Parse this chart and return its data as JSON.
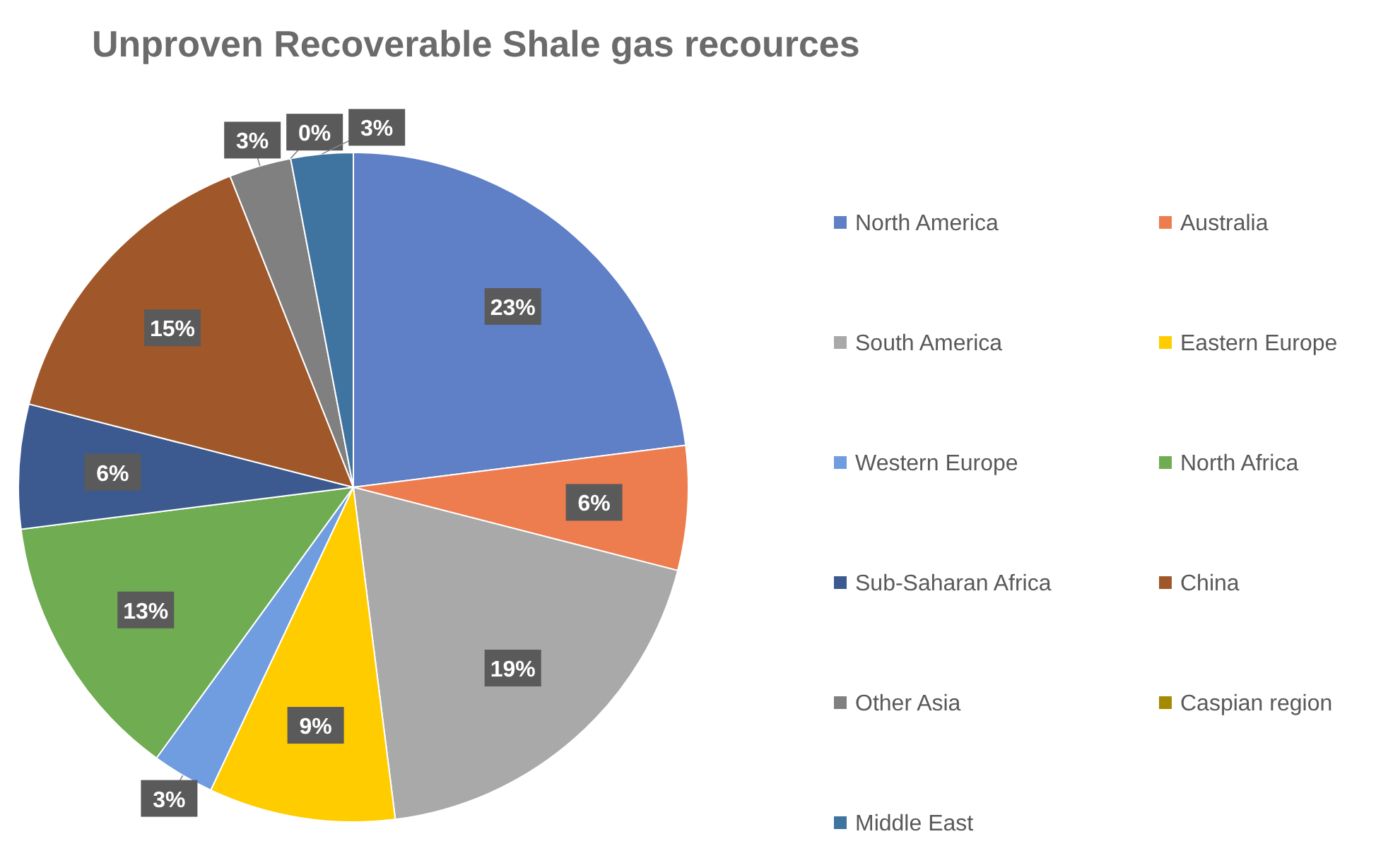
{
  "chart_data": {
    "type": "pie",
    "title": "Unproven Recoverable Shale gas recources",
    "categories": [
      "North America",
      "Australia",
      "South America",
      "Eastern Europe",
      "Western Europe",
      "North Africa",
      "Sub-Saharan Africa",
      "China",
      "Other Asia",
      "Caspian region",
      "Middle East"
    ],
    "values": [
      23,
      6,
      19,
      9,
      3,
      13,
      6,
      15,
      3,
      0,
      3
    ],
    "colors": [
      "#5f7fc6",
      "#ed7d4f",
      "#a9a9a9",
      "#ffcc00",
      "#6f9de0",
      "#6fac52",
      "#3c5a8f",
      "#a0582a",
      "#808080",
      "#a38a00",
      "#3f73a0"
    ],
    "value_labels": [
      "23%",
      "6%",
      "19%",
      "9%",
      "3%",
      "13%",
      "6%",
      "15%",
      "3%",
      "0%",
      "3%"
    ],
    "legend": "right"
  }
}
